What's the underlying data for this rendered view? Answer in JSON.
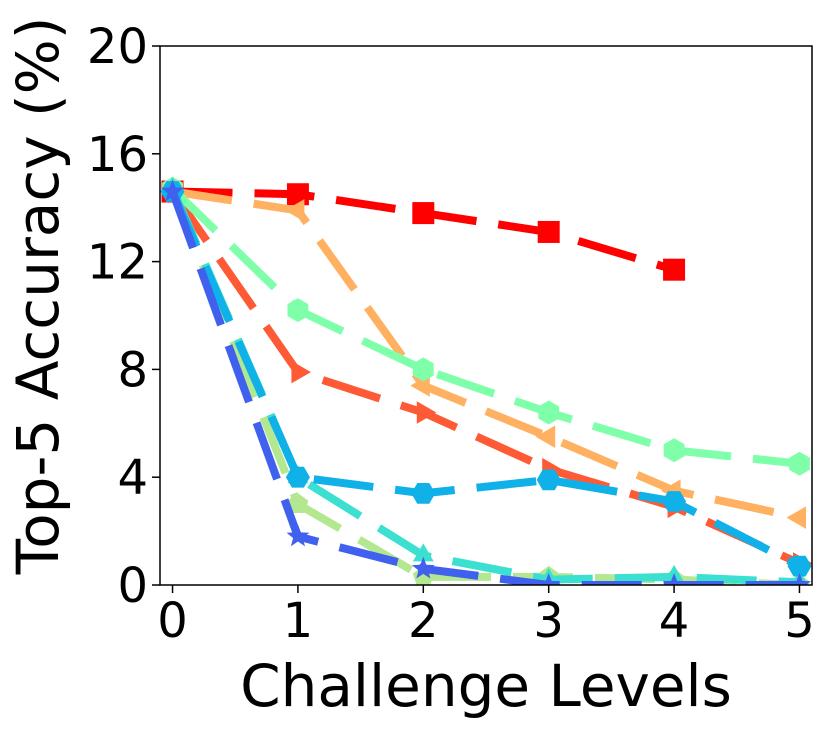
{
  "chart_data": {
    "type": "line",
    "xlabel": "Challenge Levels",
    "ylabel": "Top-5 Accuracy (%)",
    "xlim": [
      -0.1,
      5.1
    ],
    "ylim": [
      0,
      20
    ],
    "x": [
      0,
      1,
      2,
      3,
      4,
      5
    ],
    "xticks": [
      "0",
      "1",
      "2",
      "3",
      "4",
      "5"
    ],
    "yticks": [
      "0",
      "4",
      "8",
      "12",
      "16",
      "20"
    ],
    "grid": false,
    "legend": "none",
    "series": [
      {
        "color": "#ff0000",
        "marker": "square",
        "values": [
          14.6,
          14.5,
          13.8,
          13.1,
          11.7,
          null
        ]
      },
      {
        "color": "#ff5a36",
        "marker": "triangle-right",
        "values": [
          14.6,
          7.9,
          6.4,
          4.3,
          2.9,
          0.8
        ]
      },
      {
        "color": "#ffb060",
        "marker": "triangle-left",
        "values": [
          14.6,
          13.9,
          7.4,
          5.5,
          3.5,
          2.5
        ]
      },
      {
        "color": "#80ffaa",
        "marker": "hexagon",
        "values": [
          14.7,
          10.2,
          8.0,
          6.4,
          5.0,
          4.5
        ]
      },
      {
        "color": "#b4e890",
        "marker": "pentagon",
        "values": [
          14.7,
          3.0,
          0.3,
          0.3,
          0.2,
          0.0
        ]
      },
      {
        "color": "#3ce0d0",
        "marker": "triangle-up",
        "values": [
          14.7,
          4.0,
          1.1,
          0.2,
          0.3,
          0.1
        ]
      },
      {
        "color": "#10b0e8",
        "marker": "diamond-hex",
        "values": [
          14.6,
          4.0,
          3.4,
          3.9,
          3.1,
          0.7
        ]
      },
      {
        "color": "#4060ee",
        "marker": "star",
        "values": [
          14.6,
          1.8,
          0.6,
          0.0,
          0.0,
          0.0
        ]
      }
    ]
  }
}
